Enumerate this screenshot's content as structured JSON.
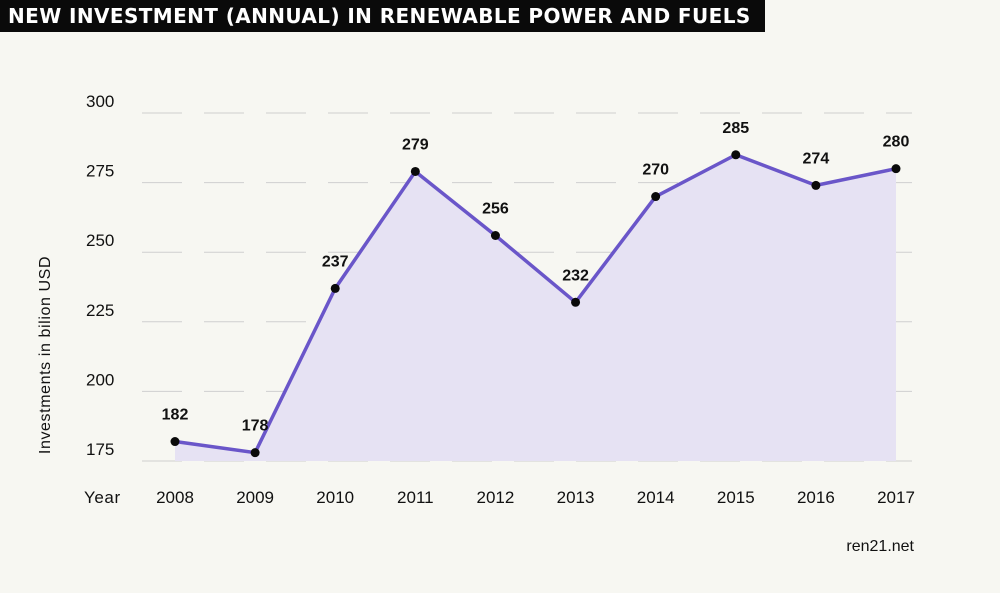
{
  "title": "NEW INVESTMENT (ANNUAL) IN RENEWABLE POWER AND FUELS",
  "source": "ren21.net",
  "colors": {
    "line": "#6a56c9",
    "area": "#e6e2f3",
    "marker": "#0a0a0a",
    "title_bg": "#0a0a0a",
    "title_text": "#ffffff",
    "background": "#f7f7f2"
  },
  "chart_data": {
    "type": "area",
    "categories": [
      "2008",
      "2009",
      "2010",
      "2011",
      "2012",
      "2013",
      "2014",
      "2015",
      "2016",
      "2017"
    ],
    "values": [
      182,
      178,
      237,
      279,
      256,
      232,
      270,
      285,
      274,
      280
    ],
    "ylabel": "Investments in bilion USD",
    "xlabel": "Year",
    "y_ticks": [
      175,
      200,
      225,
      250,
      275,
      300
    ],
    "ylim": [
      175,
      300
    ],
    "grid": "dashed-horizontal",
    "data_labels": true
  }
}
